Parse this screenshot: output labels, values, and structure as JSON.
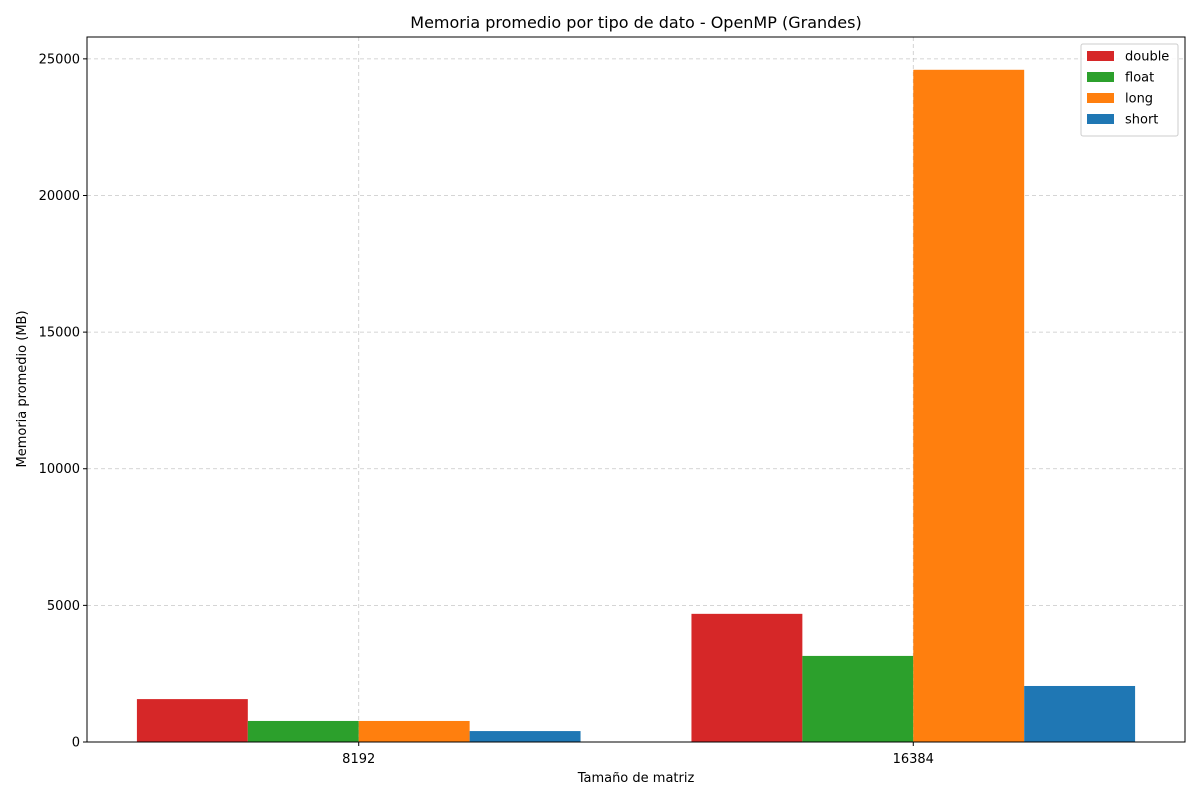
{
  "chart_data": {
    "type": "bar",
    "title": "Memoria promedio por tipo de dato - OpenMP (Grandes)",
    "xlabel": "Tamaño de matriz",
    "ylabel": "Memoria promedio (MB)",
    "categories": [
      "8192",
      "16384"
    ],
    "ylim": [
      0,
      25800
    ],
    "yticks": [
      0,
      5000,
      10000,
      15000,
      20000,
      25000
    ],
    "grid": true,
    "legend_position": "top-right",
    "series": [
      {
        "name": "double",
        "color": "#d62728",
        "values": [
          1570,
          4690
        ]
      },
      {
        "name": "float",
        "color": "#2ca02c",
        "values": [
          770,
          3150
        ]
      },
      {
        "name": "long",
        "color": "#ff7f0e",
        "values": [
          770,
          24600
        ]
      },
      {
        "name": "short",
        "color": "#1f77b4",
        "values": [
          400,
          2050
        ]
      }
    ]
  }
}
